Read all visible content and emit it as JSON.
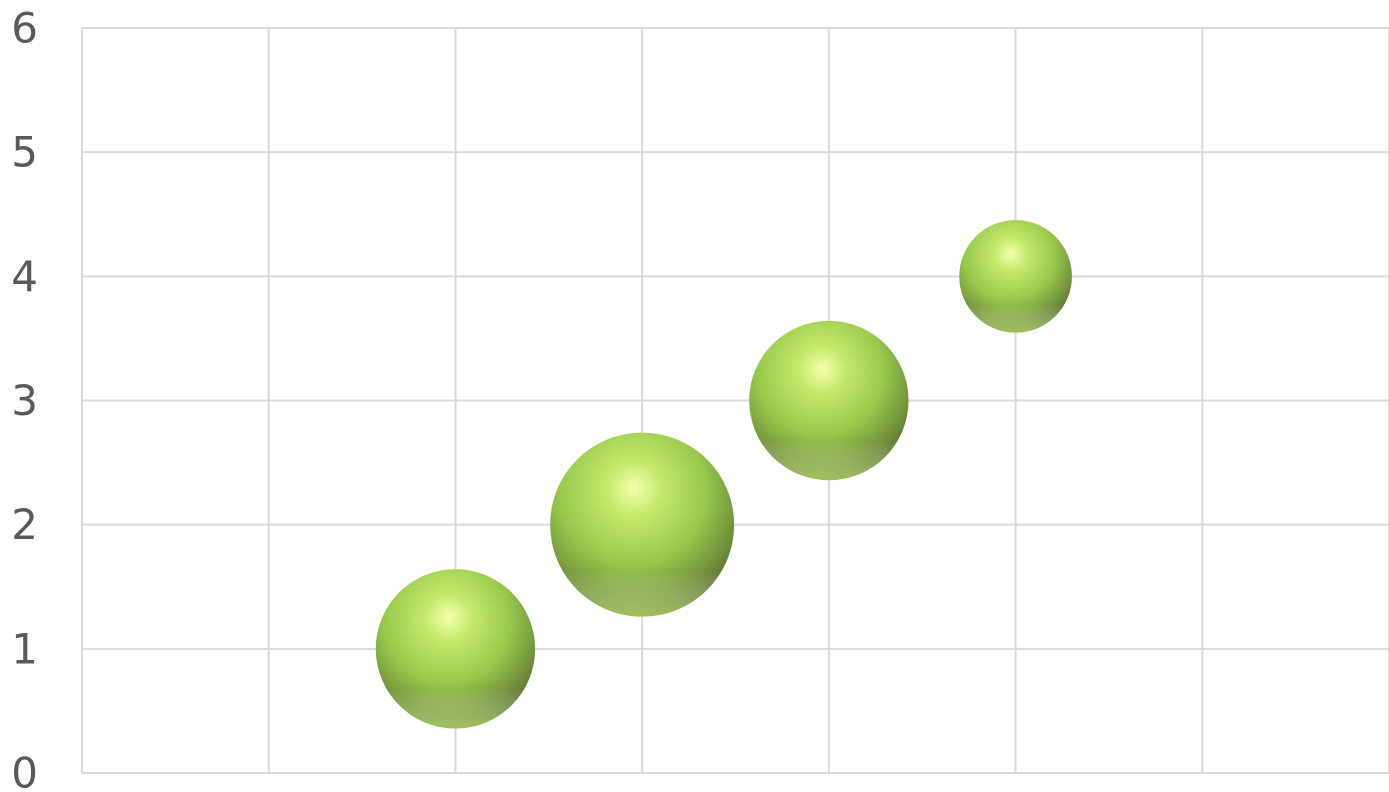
{
  "chart_data": {
    "type": "scatter",
    "subtype": "bubble",
    "title": "",
    "xlabel": "",
    "ylabel": "",
    "xlim": [
      0,
      7
    ],
    "ylim": [
      0,
      6
    ],
    "y_ticks": [
      0,
      1,
      2,
      3,
      4,
      5,
      6
    ],
    "x_tick_labels_shown": false,
    "grid": true,
    "legend": "none",
    "bubble_color": "#92d050",
    "series": [
      {
        "points": [
          {
            "x": 2,
            "y": 1,
            "size": 3
          },
          {
            "x": 3,
            "y": 2,
            "size": 4
          },
          {
            "x": 4,
            "y": 3,
            "size": 3
          },
          {
            "x": 5,
            "y": 4,
            "size": 1.5
          }
        ]
      }
    ]
  }
}
